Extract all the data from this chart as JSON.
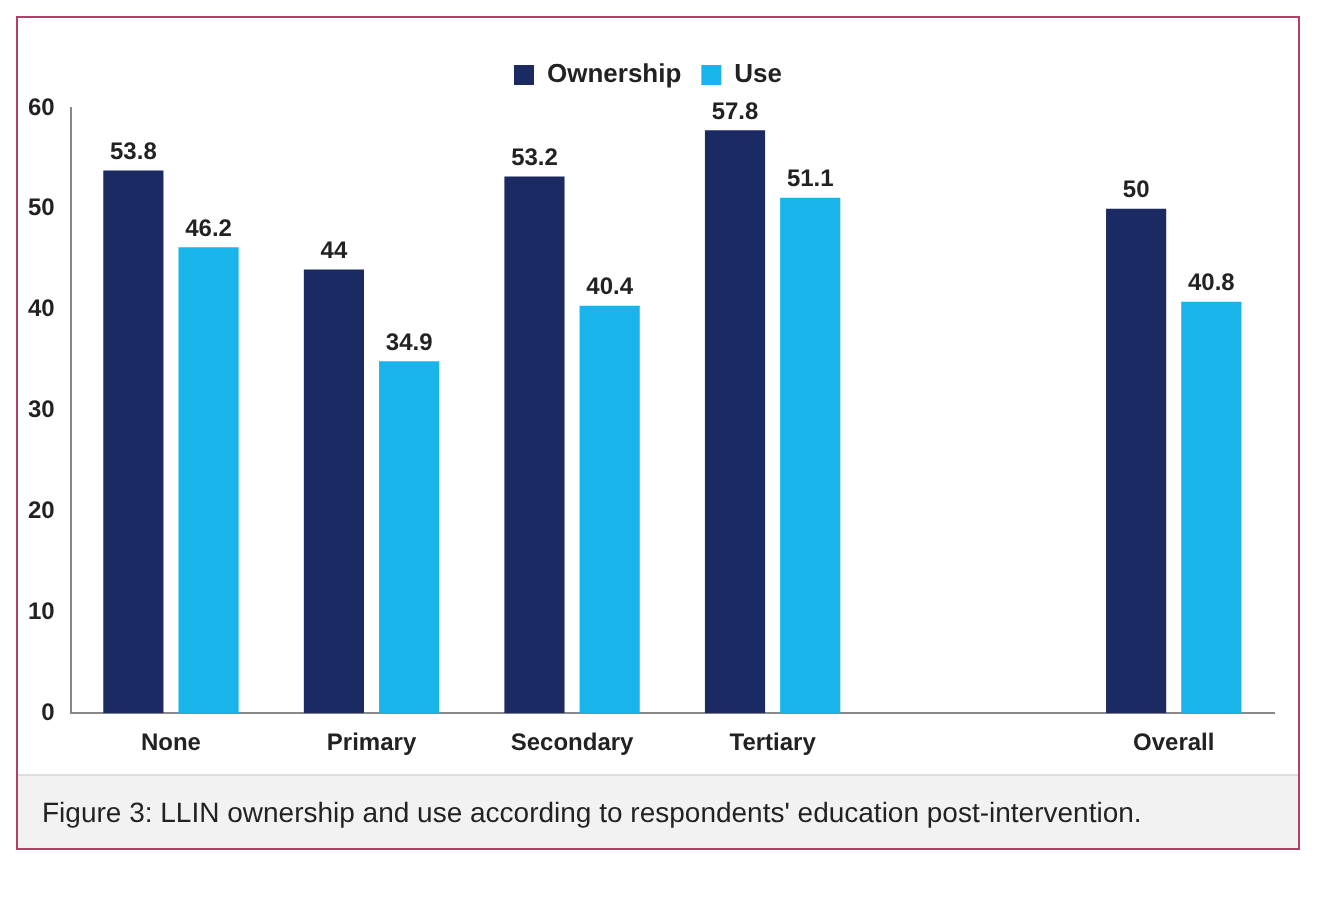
{
  "chart_data": {
    "type": "bar",
    "categories": [
      "None",
      "Primary",
      "Secondary",
      "Tertiary",
      null,
      "Overall"
    ],
    "series": [
      {
        "name": "Ownership",
        "color": "#1b2a63",
        "values": [
          53.8,
          44,
          53.2,
          57.8,
          null,
          50
        ]
      },
      {
        "name": "Use",
        "color": "#19b5ea",
        "values": [
          46.2,
          34.9,
          40.4,
          51.1,
          null,
          40.8
        ]
      }
    ],
    "ylim": [
      0,
      60
    ],
    "yticks": [
      0,
      10,
      20,
      30,
      40,
      50,
      60
    ],
    "grid": false,
    "legend": "top",
    "data_labels": true,
    "annotations": [
      "Figure 3: LLIN ownership and use according to respondents' education post-intervention."
    ]
  }
}
